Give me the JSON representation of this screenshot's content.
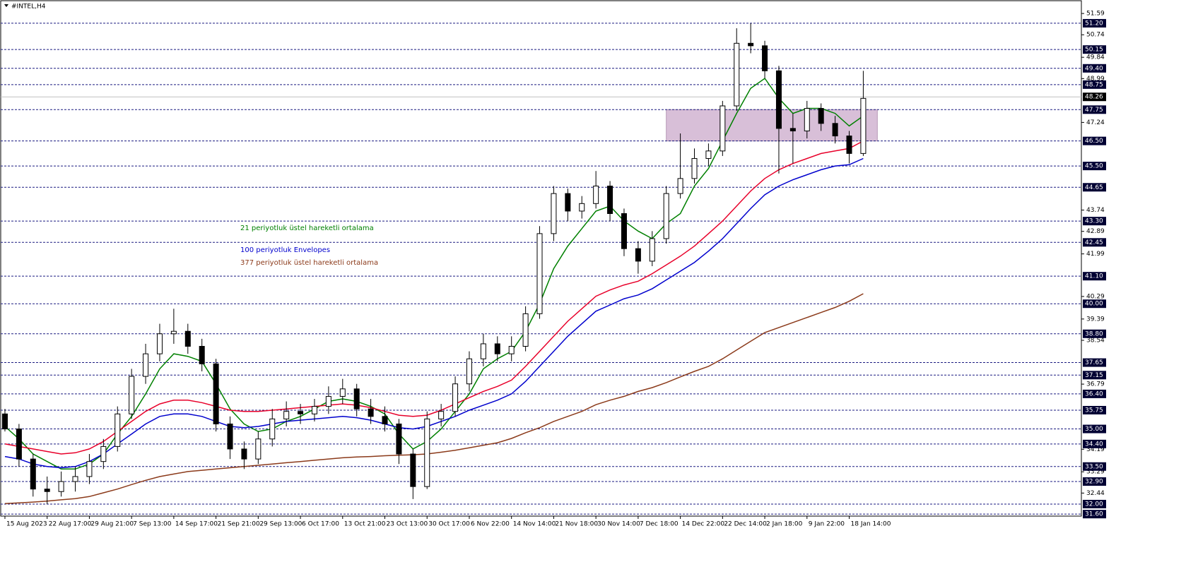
{
  "chart_data": {
    "type": "candlestick",
    "title": "#INTEL,H4",
    "bull_color": "#ffffff",
    "bear_color": "#000000",
    "ohlc": [
      [
        35.6,
        35.8,
        34.9,
        35.0
      ],
      [
        35.0,
        35.2,
        33.5,
        33.8
      ],
      [
        33.8,
        34.0,
        32.3,
        32.6
      ],
      [
        32.6,
        33.1,
        32.0,
        32.5
      ],
      [
        32.5,
        33.3,
        32.3,
        32.9
      ],
      [
        32.9,
        33.5,
        32.5,
        33.1
      ],
      [
        33.1,
        34.0,
        32.8,
        33.7
      ],
      [
        33.7,
        34.6,
        33.4,
        34.3
      ],
      [
        34.3,
        35.9,
        34.1,
        35.6
      ],
      [
        35.6,
        37.4,
        35.4,
        37.1
      ],
      [
        37.1,
        38.4,
        36.8,
        38.0
      ],
      [
        38.0,
        39.2,
        37.7,
        38.8
      ],
      [
        38.8,
        39.8,
        38.4,
        38.9
      ],
      [
        38.9,
        39.2,
        38.0,
        38.3
      ],
      [
        38.3,
        38.6,
        37.3,
        37.6
      ],
      [
        37.6,
        37.8,
        34.9,
        35.2
      ],
      [
        35.2,
        35.5,
        33.8,
        34.2
      ],
      [
        34.2,
        34.5,
        33.4,
        33.8
      ],
      [
        33.8,
        34.9,
        33.6,
        34.6
      ],
      [
        34.6,
        35.8,
        34.3,
        35.4
      ],
      [
        35.4,
        36.1,
        35.1,
        35.7
      ],
      [
        35.7,
        36.0,
        35.2,
        35.6
      ],
      [
        35.6,
        36.2,
        35.3,
        35.9
      ],
      [
        35.9,
        36.7,
        35.6,
        36.3
      ],
      [
        36.3,
        37.0,
        36.0,
        36.6
      ],
      [
        36.6,
        36.8,
        35.5,
        35.8
      ],
      [
        35.8,
        36.2,
        35.2,
        35.5
      ],
      [
        35.5,
        35.9,
        34.9,
        35.2
      ],
      [
        35.2,
        35.4,
        33.6,
        34.0
      ],
      [
        34.0,
        34.2,
        32.2,
        32.7
      ],
      [
        32.7,
        35.7,
        32.6,
        35.4
      ],
      [
        35.4,
        36.0,
        35.1,
        35.7
      ],
      [
        35.7,
        37.1,
        35.5,
        36.8
      ],
      [
        36.8,
        38.1,
        36.5,
        37.8
      ],
      [
        37.8,
        38.8,
        37.5,
        38.4
      ],
      [
        38.4,
        38.7,
        37.7,
        38.0
      ],
      [
        38.0,
        38.7,
        37.7,
        38.3
      ],
      [
        38.3,
        39.9,
        38.1,
        39.6
      ],
      [
        39.6,
        43.1,
        39.4,
        42.8
      ],
      [
        42.8,
        44.7,
        42.5,
        44.4
      ],
      [
        44.4,
        44.6,
        43.3,
        43.7
      ],
      [
        43.7,
        44.3,
        43.4,
        44.0
      ],
      [
        44.0,
        45.3,
        43.8,
        44.7
      ],
      [
        44.7,
        44.9,
        43.3,
        43.6
      ],
      [
        43.6,
        43.8,
        41.9,
        42.2
      ],
      [
        42.2,
        42.5,
        41.2,
        41.7
      ],
      [
        41.7,
        42.9,
        41.5,
        42.6
      ],
      [
        42.6,
        44.7,
        42.4,
        44.4
      ],
      [
        44.4,
        46.8,
        44.2,
        45.0
      ],
      [
        45.0,
        46.2,
        44.8,
        45.8
      ],
      [
        45.8,
        46.4,
        45.5,
        46.1
      ],
      [
        46.1,
        48.1,
        45.9,
        47.9
      ],
      [
        47.9,
        51.0,
        47.7,
        50.4
      ],
      [
        50.4,
        51.2,
        50.0,
        50.3
      ],
      [
        50.3,
        50.5,
        49.0,
        49.3
      ],
      [
        49.3,
        49.5,
        45.2,
        47.0
      ],
      [
        47.0,
        47.6,
        45.6,
        46.9
      ],
      [
        46.9,
        48.1,
        46.6,
        47.8
      ],
      [
        47.8,
        48.0,
        46.9,
        47.2
      ],
      [
        47.2,
        47.5,
        46.4,
        46.7
      ],
      [
        46.7,
        46.9,
        45.6,
        46.0
      ],
      [
        46.0,
        49.3,
        45.9,
        48.2
      ]
    ],
    "series": [
      {
        "name": "21 periyotluk üstel hareketli ortalama",
        "color": "#008000",
        "values": [
          35.1,
          34.6,
          34.0,
          33.7,
          33.4,
          33.4,
          33.6,
          34.0,
          34.8,
          35.5,
          36.4,
          37.4,
          38.0,
          37.9,
          37.7,
          36.8,
          35.8,
          35.2,
          34.9,
          35.0,
          35.3,
          35.5,
          35.8,
          36.1,
          36.2,
          36.1,
          35.9,
          35.6,
          34.8,
          34.2,
          34.5,
          35.0,
          35.7,
          36.4,
          37.4,
          37.8,
          38.1,
          38.9,
          40.0,
          41.4,
          42.3,
          43.0,
          43.7,
          43.9,
          43.3,
          42.9,
          42.6,
          43.2,
          43.6,
          44.7,
          45.4,
          46.5,
          47.6,
          48.6,
          49.0,
          48.2,
          47.6,
          47.8,
          47.8,
          47.6,
          47.1,
          47.5
        ]
      },
      {
        "color": "#e8002a",
        "values": [
          34.4,
          34.3,
          34.2,
          34.1,
          34.0,
          34.05,
          34.2,
          34.5,
          34.9,
          35.3,
          35.7,
          36.0,
          36.15,
          36.15,
          36.05,
          35.9,
          35.75,
          35.7,
          35.7,
          35.75,
          35.8,
          35.85,
          35.9,
          35.95,
          36.0,
          35.95,
          35.85,
          35.7,
          35.55,
          35.5,
          35.55,
          35.75,
          36.0,
          36.25,
          36.5,
          36.7,
          36.95,
          37.5,
          38.1,
          38.7,
          39.3,
          39.8,
          40.3,
          40.55,
          40.75,
          40.9,
          41.2,
          41.55,
          41.9,
          42.3,
          42.8,
          43.3,
          43.9,
          44.5,
          45.0,
          45.35,
          45.6,
          45.8,
          46.0,
          46.1,
          46.2,
          46.5
        ]
      },
      {
        "name": "100 periyotluk Envelopes",
        "color": "#0000cd",
        "values": [
          33.9,
          33.8,
          33.6,
          33.5,
          33.45,
          33.5,
          33.7,
          34.0,
          34.4,
          34.8,
          35.2,
          35.5,
          35.6,
          35.6,
          35.5,
          35.3,
          35.1,
          35.05,
          35.1,
          35.2,
          35.3,
          35.35,
          35.4,
          35.45,
          35.5,
          35.45,
          35.35,
          35.2,
          35.05,
          35.0,
          35.1,
          35.3,
          35.5,
          35.75,
          35.95,
          36.15,
          36.4,
          36.9,
          37.5,
          38.1,
          38.7,
          39.2,
          39.7,
          39.95,
          40.2,
          40.35,
          40.6,
          40.95,
          41.3,
          41.65,
          42.1,
          42.6,
          43.2,
          43.8,
          44.35,
          44.7,
          44.95,
          45.15,
          45.35,
          45.5,
          45.55,
          45.8
        ]
      },
      {
        "name": "377 periyotluk üstel hareketli ortalama",
        "color": "#8b3a1a",
        "values": [
          32.02,
          32.05,
          32.08,
          32.12,
          32.17,
          32.22,
          32.3,
          32.45,
          32.6,
          32.78,
          32.95,
          33.1,
          33.2,
          33.3,
          33.35,
          33.4,
          33.45,
          33.5,
          33.55,
          33.6,
          33.65,
          33.7,
          33.75,
          33.8,
          33.85,
          33.88,
          33.9,
          33.93,
          33.95,
          33.97,
          34.0,
          34.07,
          34.15,
          34.25,
          34.35,
          34.45,
          34.62,
          34.85,
          35.05,
          35.3,
          35.5,
          35.7,
          35.97,
          36.15,
          36.3,
          36.5,
          36.65,
          36.85,
          37.08,
          37.3,
          37.5,
          37.8,
          38.15,
          38.5,
          38.85,
          39.05,
          39.25,
          39.45,
          39.65,
          39.85,
          40.1,
          40.4
        ]
      }
    ],
    "zone": {
      "color": "#d8bfd8",
      "ylim": [
        46.5,
        47.75
      ],
      "xlim": [
        47,
        62
      ]
    },
    "last_price": 48.26,
    "ylim": [
      31.52,
      52.1
    ],
    "xlim": [
      -0.3,
      76.5
    ],
    "levels": [
      {
        "value": 51.2,
        "label": "51.20"
      },
      50.15,
      {
        "value": 49.4,
        "label": "49.40"
      },
      48.75,
      47.75,
      {
        "value": 46.5,
        "label": "46.50"
      },
      {
        "value": 45.5,
        "label": "45.50"
      },
      44.65,
      {
        "value": 43.3,
        "label": "43.30"
      },
      42.45,
      {
        "value": 41.1,
        "label": "41.10"
      },
      {
        "value": 40,
        "label": "40.00"
      },
      {
        "value": 38.8,
        "label": "38.80"
      },
      37.65,
      37.15,
      {
        "value": 36.4,
        "label": "36.40"
      },
      35.75,
      {
        "value": 35,
        "label": "35.00"
      },
      {
        "value": 34.4,
        "label": "34.40"
      },
      {
        "value": 33.5,
        "label": "33.50"
      },
      {
        "value": 32.9,
        "label": "32.90"
      },
      {
        "value": 32,
        "label": "32.00"
      },
      {
        "value": 31.6,
        "label": "31.60"
      }
    ],
    "yticks": [
      51.59,
      50.74,
      49.84,
      48.99,
      47.24,
      43.74,
      42.89,
      41.99,
      40.29,
      39.39,
      38.54,
      36.79,
      34.19,
      33.29,
      32.44
    ],
    "xticks": [
      {
        "value": 0,
        "label": "15 Aug 2023"
      },
      {
        "value": 3,
        "label": "22 Aug 17:00"
      },
      {
        "value": 6,
        "label": "29 Aug 21:00"
      },
      {
        "value": 9,
        "label": "7 Sep 13:00"
      },
      {
        "value": 12,
        "label": "14 Sep 17:00"
      },
      {
        "value": 15,
        "label": "21 Sep 21:00"
      },
      {
        "value": 18,
        "label": "29 Sep 13:00"
      },
      {
        "value": 21,
        "label": "6 Oct 17:00"
      },
      {
        "value": 24,
        "label": "13 Oct 21:00"
      },
      {
        "value": 27,
        "label": "23 Oct 13:00"
      },
      {
        "value": 30,
        "label": "30 Oct 17:00"
      },
      {
        "value": 33,
        "label": "6 Nov 22:00"
      },
      {
        "value": 36,
        "label": "14 Nov 14:00"
      },
      {
        "value": 39,
        "label": "21 Nov 18:00"
      },
      {
        "value": 42,
        "label": "30 Nov 14:00"
      },
      {
        "value": 45,
        "label": "7 Dec 18:00"
      },
      {
        "value": 48,
        "label": "14 Dec 22:00"
      },
      {
        "value": 51,
        "label": "22 Dec 14:00"
      },
      {
        "value": 54,
        "label": "2 Jan 18:00"
      },
      {
        "value": 57,
        "label": "9 Jan 22:00"
      },
      {
        "value": 60,
        "label": "18 Jan 14:00"
      }
    ]
  }
}
